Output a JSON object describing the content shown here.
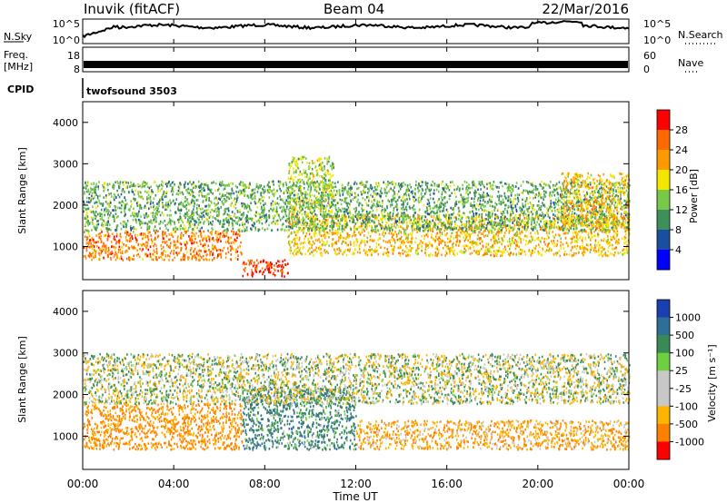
{
  "header": {
    "station": "Inuvik (fitACF)",
    "beam": "Beam 04",
    "date": "22/Mar/2016"
  },
  "noise_panel": {
    "left_label": "N.Sky",
    "right_label": "N.Search",
    "left_ticks": [
      "10^5",
      "10^0"
    ],
    "right_ticks": [
      "10^5",
      "10^0"
    ]
  },
  "freq_panel": {
    "left_label_1": "Freq.",
    "left_label_2": "[MHz]",
    "left_ticks": [
      "18",
      "8"
    ],
    "right_label": "Nave",
    "right_ticks": [
      "60",
      "0"
    ]
  },
  "cpid": {
    "label": "CPID",
    "value": "twofsound 3503"
  },
  "power_panel": {
    "ylabel": "Slant Range [km]",
    "colorbar_label": "Power [dB]",
    "colorbar_ticks": [
      "28",
      "24",
      "20",
      "16",
      "12",
      "8",
      "4"
    ],
    "colorbar_colors": [
      "#ff0000",
      "#ff6a00",
      "#ff9900",
      "#f5e600",
      "#78c84a",
      "#3f8f5a",
      "#1a4fa0",
      "#0000ff"
    ]
  },
  "velocity_panel": {
    "ylabel": "Slant Range [km]",
    "colorbar_label": "Velocity [m s⁻¹]",
    "colorbar_ticks": [
      "1000",
      "500",
      "100",
      "25",
      "-25",
      "-100",
      "-500",
      "-1000"
    ],
    "colorbar_colors": [
      "#1a3fb0",
      "#2e6f9a",
      "#3a8a55",
      "#6ed040",
      "#c8c8c8",
      "#c8c8c8",
      "#ffb400",
      "#ff8000",
      "#ff0000"
    ]
  },
  "xaxis": {
    "label": "Time UT",
    "ticks": [
      "00:00",
      "04:00",
      "08:00",
      "12:00",
      "16:00",
      "20:00",
      "00:00"
    ]
  },
  "chart_data": {
    "type": "heatmap",
    "x_range_hours": [
      0,
      24
    ],
    "y_range_km": [
      200,
      4500
    ],
    "yticks": [
      1000,
      2000,
      3000,
      4000
    ],
    "power_bands": [
      {
        "t0": 0,
        "t1": 7,
        "r0": 700,
        "r1": 1400,
        "value_db": 24
      },
      {
        "t0": 7,
        "t1": 9,
        "r0": 300,
        "r1": 700,
        "value_db": 28
      },
      {
        "t0": 9,
        "t1": 24,
        "r0": 800,
        "r1": 1800,
        "value_db": 20
      },
      {
        "t0": 0,
        "t1": 24,
        "r0": 1400,
        "r1": 2600,
        "value_db": 12
      },
      {
        "t0": 9,
        "t1": 11,
        "r0": 1800,
        "r1": 3200,
        "value_db": 16
      },
      {
        "t0": 21,
        "t1": 24,
        "r0": 1500,
        "r1": 2800,
        "value_db": 20
      }
    ],
    "velocity_bands": [
      {
        "t0": 0,
        "t1": 7,
        "r0": 700,
        "r1": 1800,
        "value_ms": -300
      },
      {
        "t0": 7,
        "t1": 12,
        "r0": 700,
        "r1": 2200,
        "value_ms": 200
      },
      {
        "t0": 12,
        "t1": 24,
        "r0": 700,
        "r1": 1400,
        "value_ms": -200
      },
      {
        "t0": 0,
        "t1": 24,
        "r0": 1800,
        "r1": 3000,
        "value_ms": 0
      }
    ]
  }
}
